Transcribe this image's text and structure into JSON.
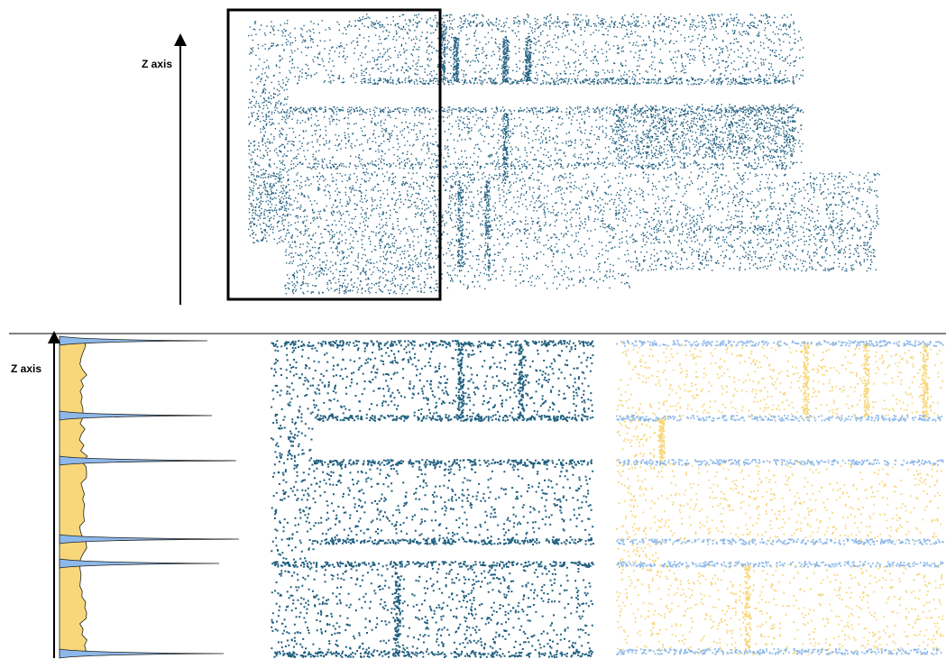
{
  "top_panel": {
    "axis_label": "Z axis"
  },
  "bottom_panel": {
    "axis_label": "Z axis"
  }
}
